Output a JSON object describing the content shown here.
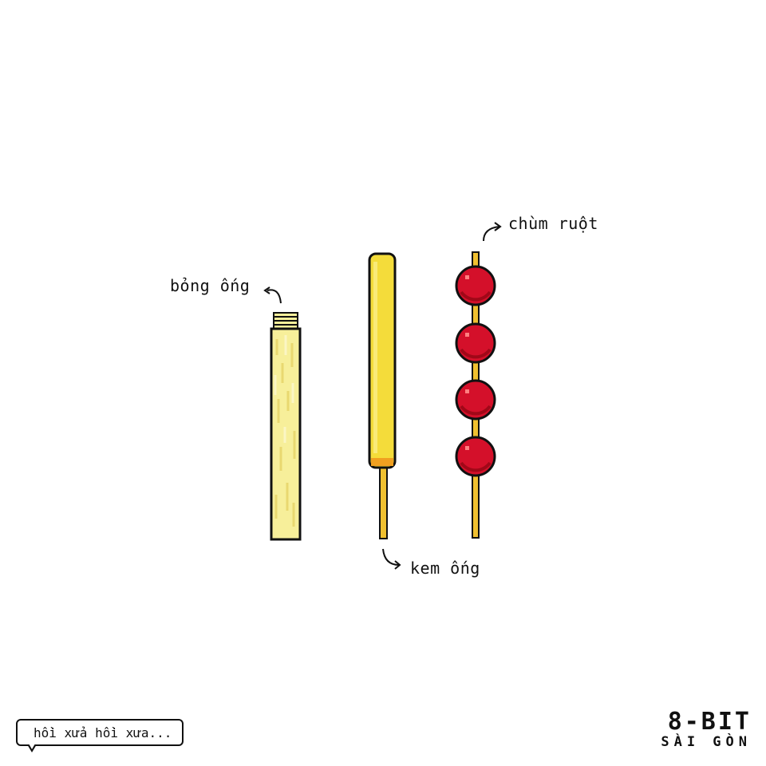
{
  "items": {
    "bong_ong": {
      "label": "bỏng ống"
    },
    "kem_ong": {
      "label": "kem ống"
    },
    "chum_ruot": {
      "label": "chùm ruột",
      "fruit_count": 4
    }
  },
  "caption": {
    "text": "hồi xửa hồi xưa..."
  },
  "logo": {
    "line1": "8-BIT",
    "line2": "SÀI GÒN"
  },
  "colors": {
    "background": "#ffffff",
    "outline": "#111111",
    "bong_fill": "#f7ef9a",
    "bong_highlight": "#fbf6c4",
    "kem_fill": "#f4dc3a",
    "kem_tip": "#f0a020",
    "stick": "#f0c030",
    "fruit": "#d4102a",
    "fruit_shade": "#a00818",
    "fruit_highlight": "#ff8080"
  }
}
